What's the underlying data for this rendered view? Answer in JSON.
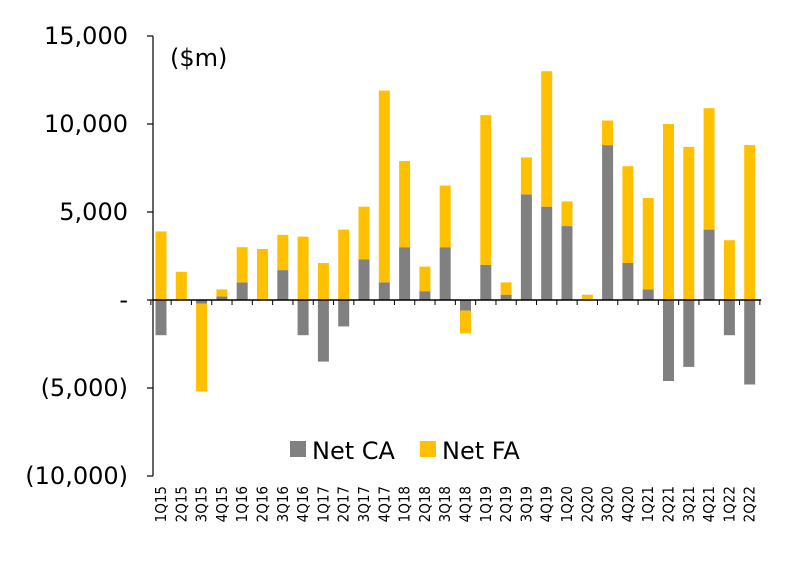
{
  "chart_data": {
    "type": "bar",
    "stacked": true,
    "unit_label": "($m)",
    "categories": [
      "1Q15",
      "2Q15",
      "3Q15",
      "4Q15",
      "1Q16",
      "2Q16",
      "3Q16",
      "4Q16",
      "1Q17",
      "2Q17",
      "3Q17",
      "4Q17",
      "1Q18",
      "2Q18",
      "3Q18",
      "4Q18",
      "1Q19",
      "2Q19",
      "3Q19",
      "4Q19",
      "1Q20",
      "2Q20",
      "3Q20",
      "4Q20",
      "1Q21",
      "2Q21",
      "3Q21",
      "4Q21",
      "1Q22",
      "2Q22"
    ],
    "series": [
      {
        "name": "Net CA",
        "color": "#808080",
        "values": [
          -2000,
          0,
          -200,
          200,
          1000,
          0,
          1700,
          -2000,
          -3500,
          -1500,
          2300,
          1000,
          3000,
          500,
          3000,
          -600,
          2000,
          300,
          6000,
          5300,
          4200,
          0,
          8800,
          2100,
          600,
          -4600,
          -3800,
          4000,
          -2000,
          -4800
        ]
      },
      {
        "name": "Net FA",
        "color": "#FFC000",
        "values": [
          3900,
          1600,
          -5000,
          400,
          2000,
          2900,
          2000,
          3600,
          2100,
          4000,
          3000,
          10900,
          4900,
          1400,
          3500,
          -1300,
          8500,
          700,
          2100,
          7700,
          1400,
          300,
          1400,
          5500,
          5200,
          10000,
          8700,
          6900,
          3400,
          8800
        ]
      }
    ],
    "ylim": [
      -10000,
      15000
    ],
    "yticks": [
      -10000,
      -5000,
      0,
      5000,
      10000,
      15000
    ],
    "ytick_labels": [
      "(10,000)",
      "(5,000)",
      "-",
      "5,000",
      "10,000",
      "15,000"
    ],
    "legend": {
      "position": "bottom-center",
      "items": [
        "Net CA",
        "Net FA"
      ]
    },
    "grid": false
  }
}
